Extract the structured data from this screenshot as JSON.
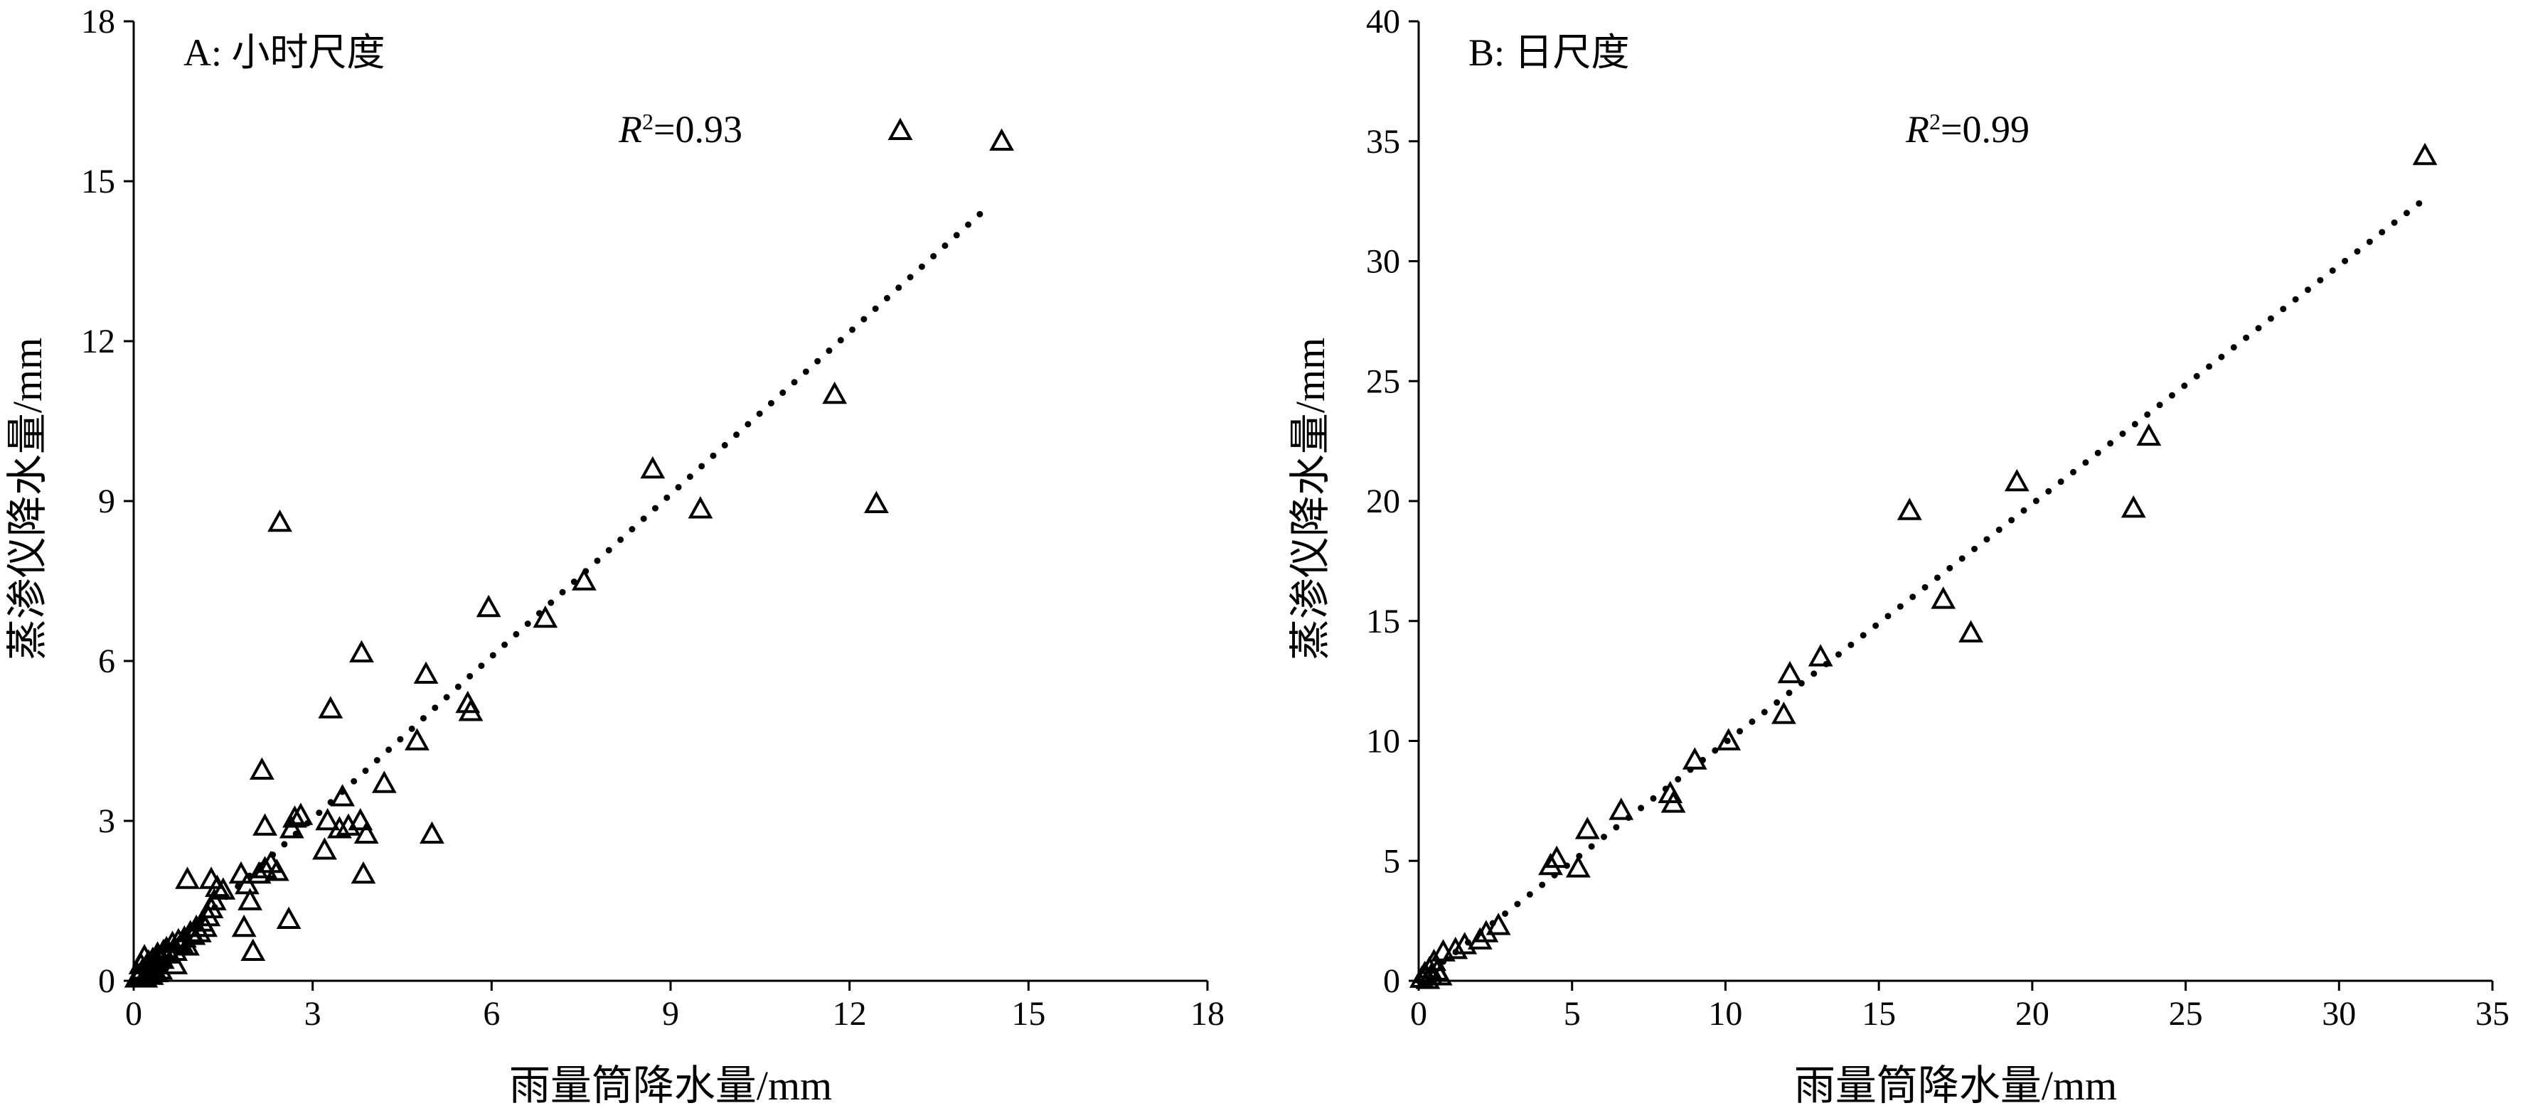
{
  "chart_data": [
    {
      "type": "scatter",
      "panel_label": "A: 小时尺度",
      "r2_label": "R",
      "r2_sup": "2",
      "r2_value": "=0.93",
      "xlabel": "雨量筒降水量/mm",
      "ylabel": "蒸渗仪降水量/mm",
      "xlim": [
        0,
        18
      ],
      "ylim": [
        0,
        18
      ],
      "xticks": [
        0,
        3,
        6,
        9,
        12,
        15,
        18
      ],
      "yticks": [
        0,
        3,
        6,
        9,
        12,
        15,
        18
      ],
      "marker": "triangle",
      "trendline": {
        "style": "dotted",
        "x": [
          0,
          14.3
        ],
        "y": [
          0,
          14.5
        ]
      },
      "points": [
        [
          0.05,
          0.05
        ],
        [
          0.1,
          0.1
        ],
        [
          0.12,
          0.3
        ],
        [
          0.15,
          0.2
        ],
        [
          0.18,
          0.45
        ],
        [
          0.2,
          0.05
        ],
        [
          0.22,
          0.15
        ],
        [
          0.25,
          0.35
        ],
        [
          0.28,
          0.25
        ],
        [
          0.3,
          0.1
        ],
        [
          0.32,
          0.4
        ],
        [
          0.35,
          0.3
        ],
        [
          0.38,
          0.15
        ],
        [
          0.4,
          0.5
        ],
        [
          0.42,
          0.45
        ],
        [
          0.45,
          0.2
        ],
        [
          0.48,
          0.4
        ],
        [
          0.5,
          0.55
        ],
        [
          0.55,
          0.6
        ],
        [
          0.6,
          0.5
        ],
        [
          0.65,
          0.7
        ],
        [
          0.7,
          0.55
        ],
        [
          0.75,
          0.75
        ],
        [
          0.8,
          0.7
        ],
        [
          0.85,
          0.8
        ],
        [
          0.9,
          0.65
        ],
        [
          0.95,
          0.9
        ],
        [
          1.0,
          0.85
        ],
        [
          1.05,
          1.0
        ],
        [
          1.1,
          0.9
        ],
        [
          1.15,
          1.1
        ],
        [
          1.2,
          1.0
        ],
        [
          1.25,
          1.2
        ],
        [
          1.3,
          1.35
        ],
        [
          1.35,
          1.5
        ],
        [
          1.4,
          1.75
        ],
        [
          1.5,
          1.7
        ],
        [
          0.7,
          0.3
        ],
        [
          0.9,
          1.9
        ],
        [
          1.3,
          1.9
        ],
        [
          1.8,
          2.0
        ],
        [
          1.9,
          1.8
        ],
        [
          1.95,
          1.5
        ],
        [
          1.85,
          1.0
        ],
        [
          2.0,
          0.55
        ],
        [
          2.1,
          2.0
        ],
        [
          2.2,
          2.1
        ],
        [
          2.3,
          2.2
        ],
        [
          2.4,
          2.05
        ],
        [
          2.15,
          3.95
        ],
        [
          2.2,
          2.9
        ],
        [
          2.45,
          8.6
        ],
        [
          2.6,
          1.15
        ],
        [
          2.65,
          2.85
        ],
        [
          2.7,
          3.05
        ],
        [
          2.8,
          3.1
        ],
        [
          3.2,
          2.45
        ],
        [
          3.25,
          3.0
        ],
        [
          3.3,
          5.1
        ],
        [
          3.45,
          2.85
        ],
        [
          3.5,
          3.45
        ],
        [
          3.6,
          2.9
        ],
        [
          3.8,
          3.0
        ],
        [
          3.82,
          6.15
        ],
        [
          3.85,
          2.0
        ],
        [
          3.9,
          2.75
        ],
        [
          4.2,
          3.7
        ],
        [
          4.75,
          4.5
        ],
        [
          4.9,
          5.75
        ],
        [
          5.0,
          2.75
        ],
        [
          5.6,
          5.2
        ],
        [
          5.65,
          5.05
        ],
        [
          5.95,
          7.0
        ],
        [
          6.9,
          6.8
        ],
        [
          7.55,
          7.5
        ],
        [
          8.7,
          9.6
        ],
        [
          9.5,
          8.85
        ],
        [
          11.75,
          11.0
        ],
        [
          12.45,
          8.95
        ],
        [
          12.85,
          15.95
        ],
        [
          14.55,
          15.75
        ]
      ]
    },
    {
      "type": "scatter",
      "panel_label": "B: 日尺度",
      "r2_label": "R",
      "r2_sup": "2",
      "r2_value": "=0.99",
      "xlabel": "雨量筒降水量/mm",
      "ylabel": "蒸渗仪降水量/mm",
      "xlim": [
        0,
        35
      ],
      "ylim": [
        0,
        40
      ],
      "xticks": [
        0,
        5,
        10,
        15,
        20,
        25,
        30,
        35
      ],
      "yticks": [
        0,
        5,
        10,
        15,
        20,
        25,
        30,
        35,
        40
      ],
      "marker": "triangle",
      "trendline": {
        "style": "dotted",
        "x": [
          0,
          32.8
        ],
        "y": [
          0,
          32.6
        ]
      },
      "points": [
        [
          0.1,
          0.1
        ],
        [
          0.2,
          0.3
        ],
        [
          0.3,
          0.05
        ],
        [
          0.35,
          0.5
        ],
        [
          0.4,
          0.2
        ],
        [
          0.5,
          0.8
        ],
        [
          0.6,
          0.4
        ],
        [
          0.7,
          0.2
        ],
        [
          0.8,
          1.2
        ],
        [
          1.2,
          1.3
        ],
        [
          1.5,
          1.5
        ],
        [
          2.0,
          1.7
        ],
        [
          2.2,
          2.0
        ],
        [
          2.6,
          2.3
        ],
        [
          4.3,
          4.8
        ],
        [
          4.5,
          5.1
        ],
        [
          5.2,
          4.7
        ],
        [
          5.5,
          6.3
        ],
        [
          6.6,
          7.1
        ],
        [
          8.2,
          7.8
        ],
        [
          8.3,
          7.4
        ],
        [
          9.0,
          9.2
        ],
        [
          10.1,
          10.0
        ],
        [
          11.9,
          11.1
        ],
        [
          12.1,
          12.8
        ],
        [
          13.1,
          13.5
        ],
        [
          16.0,
          19.6
        ],
        [
          17.1,
          15.9
        ],
        [
          18.0,
          14.5
        ],
        [
          19.5,
          20.8
        ],
        [
          23.3,
          19.7
        ],
        [
          23.8,
          22.7
        ],
        [
          32.8,
          34.4
        ]
      ]
    }
  ]
}
